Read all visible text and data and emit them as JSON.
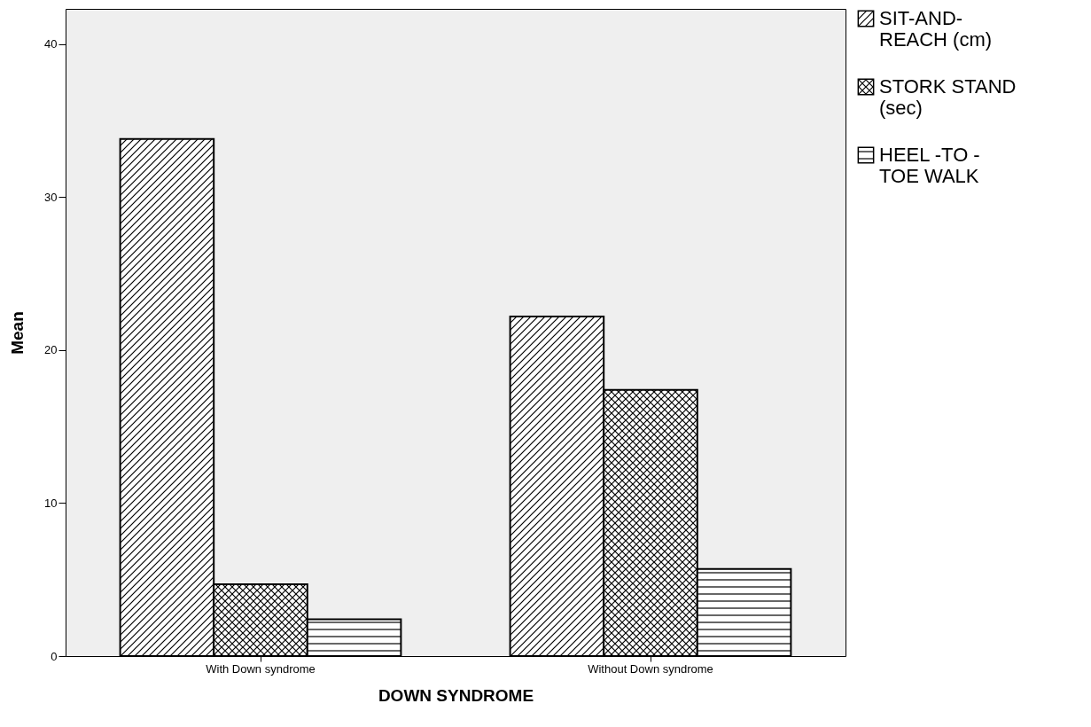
{
  "chart_data": {
    "type": "bar",
    "xlabel": "DOWN SYNDROME",
    "ylabel": "Mean",
    "categories": [
      "With Down syndrome",
      "Without Down syndrome"
    ],
    "series": [
      {
        "name": "SIT-AND-REACH (cm)",
        "color": "#000000",
        "values": [
          33.8,
          22.2
        ]
      },
      {
        "name": "STORK STAND (sec)",
        "color": "#000000",
        "values": [
          4.7,
          17.4
        ]
      },
      {
        "name": "HEEL -TO -TOE WALK",
        "color": "#000000",
        "values": [
          2.4,
          5.7
        ]
      }
    ],
    "ylim": [
      0,
      42.3
    ],
    "yticks": [
      0,
      10,
      20,
      30,
      40
    ],
    "grid": false,
    "legend": "right"
  }
}
